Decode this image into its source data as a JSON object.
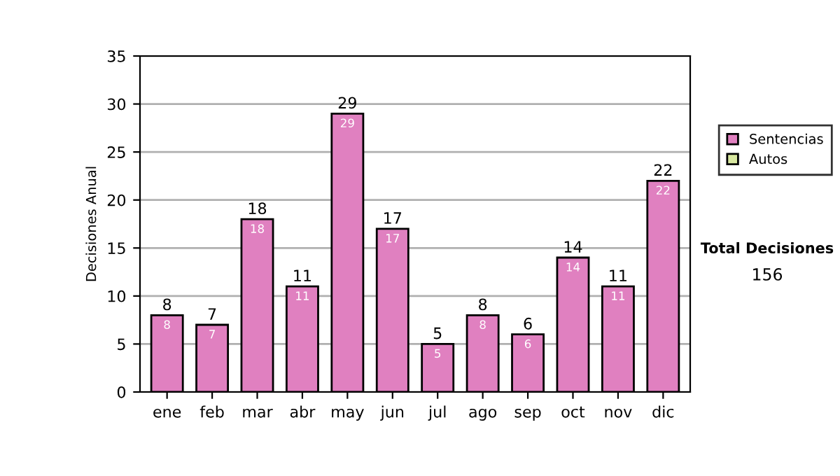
{
  "chart_data": {
    "type": "bar",
    "ylabel": "Decisiones Anual",
    "categories": [
      "ene",
      "feb",
      "mar",
      "abr",
      "may",
      "jun",
      "jul",
      "ago",
      "sep",
      "oct",
      "nov",
      "dic"
    ],
    "series": [
      {
        "name": "Sentencias",
        "color": "#e080c0",
        "values": [
          8,
          7,
          18,
          11,
          29,
          17,
          5,
          8,
          6,
          14,
          11,
          22
        ],
        "value_labels": [
          "8",
          "7",
          "18",
          "11",
          "29",
          "17",
          "5",
          "8",
          "6",
          "14",
          "11",
          "22"
        ]
      },
      {
        "name": "Autos",
        "color": "#d8e8a0",
        "values": [
          null,
          null,
          null,
          null,
          null,
          null,
          null,
          null,
          null,
          null,
          null,
          null
        ]
      }
    ],
    "stacked": true,
    "totals": [
      "8",
      "7",
      "18",
      "11",
      "29",
      "17",
      "5",
      "8",
      "6",
      "14",
      "11",
      "22"
    ],
    "ylim": [
      0,
      35
    ],
    "yticks": [
      0,
      5,
      10,
      15,
      20,
      25,
      30,
      35
    ],
    "grid": "y",
    "legend": "right",
    "annotations": [
      "Total Decisiones",
      "156"
    ]
  }
}
